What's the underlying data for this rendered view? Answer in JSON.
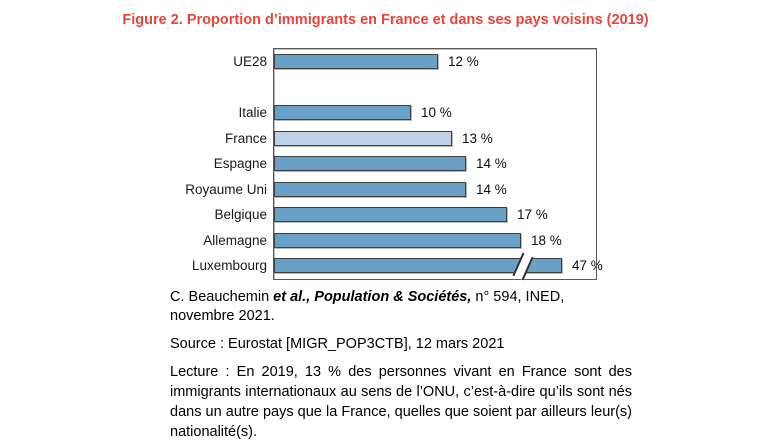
{
  "figure": {
    "title": "Figure 2. Proportion d’immigrants en France et dans ses pays voisins (2019)",
    "title_color": "#e8443c"
  },
  "chart_data": {
    "type": "bar",
    "orientation": "horizontal",
    "title": "Figure 2. Proportion d’immigrants en France et dans ses pays voisins (2019)",
    "unit": "%",
    "categories": [
      "UE28",
      "Italie",
      "France",
      "Espagne",
      "Royaume Uni",
      "Belgique",
      "Allemagne",
      "Luxembourg"
    ],
    "values": [
      12,
      10,
      13,
      14,
      14,
      17,
      18,
      47
    ],
    "value_labels": [
      "12 %",
      "10 %",
      "13 %",
      "14 %",
      "14 %",
      "17 %",
      "18 %",
      "47 %"
    ],
    "xlabel": "",
    "ylabel": "",
    "xlim": [
      0,
      23
    ],
    "grid": false,
    "legend": "none",
    "gap_after_category": "UE28",
    "highlight_category": "France",
    "axis_break": {
      "category": "Luxembourg",
      "true_value": 47
    },
    "colors": {
      "bar": "#68a0c8",
      "highlight_bar": "#bdd2e8",
      "bar_border": "#3f3f3f",
      "plot_border": "#595959"
    }
  },
  "notes": {
    "citation_prefix": "C. Beauchemin ",
    "citation_emphasis": "et al., Population & Sociétés,",
    "citation_suffix": " n° 594, INED, novembre 2021.",
    "source": "Source : Eurostat [MIGR_POP3CTB], 12 mars 2021",
    "lecture": "Lecture : En 2019, 13 % des personnes vivant en France sont des immigrants internationaux au sens de l’ONU, c’est-à-dire qu’ils sont nés dans un autre pays que la France, quelles que soient par ailleurs leur(s) nationalité(s)."
  }
}
